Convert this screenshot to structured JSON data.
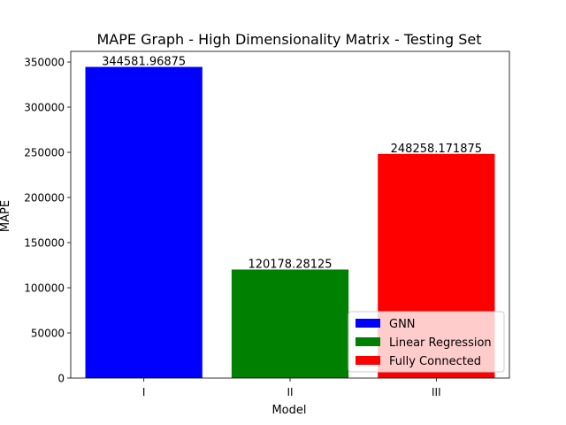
{
  "chart_data": {
    "type": "bar",
    "title": "MAPE Graph - High Dimensionality Matrix - Testing Set",
    "xlabel": "Model",
    "ylabel": "MAPE",
    "categories": [
      "I",
      "II",
      "III"
    ],
    "values": [
      344581.96875,
      120178.28125,
      248258.171875
    ],
    "value_labels": [
      "344581.96875",
      "120178.28125",
      "248258.171875"
    ],
    "colors": [
      "#0000ff",
      "#008000",
      "#ff0000"
    ],
    "legend": [
      "GNN",
      "Linear Regression",
      "Fully Connected"
    ],
    "legend_position": "lower-right",
    "ylim": [
      0,
      361811
    ],
    "yticks": [
      0,
      50000,
      100000,
      150000,
      200000,
      250000,
      300000,
      350000
    ],
    "grid": false
  }
}
